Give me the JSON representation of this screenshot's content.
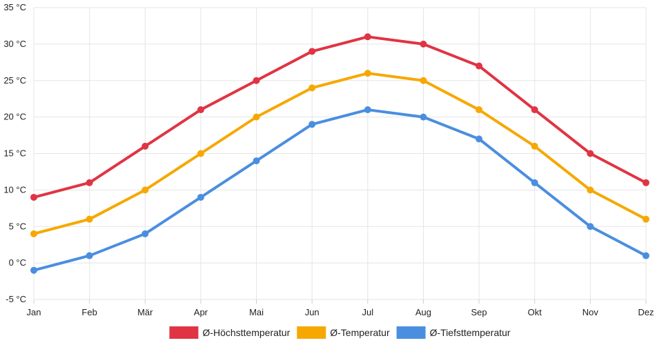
{
  "chart_data": {
    "type": "line",
    "categories": [
      "Jan",
      "Feb",
      "Mär",
      "Apr",
      "Mai",
      "Jun",
      "Jul",
      "Aug",
      "Sep",
      "Okt",
      "Nov",
      "Dez"
    ],
    "y_unit": "°C",
    "ylim": [
      -5,
      35
    ],
    "y_ticks": [
      -5,
      0,
      5,
      10,
      15,
      20,
      25,
      30,
      35
    ],
    "grid": true,
    "legend_position": "bottom",
    "series": [
      {
        "name": "Ø-Höchsttemperatur",
        "color": "#e03444",
        "values": [
          9,
          11,
          16,
          21,
          25,
          29,
          31,
          30,
          27,
          21,
          15,
          11
        ]
      },
      {
        "name": "Ø-Temperatur",
        "color": "#f6a800",
        "values": [
          4,
          6,
          10,
          15,
          20,
          24,
          26,
          25,
          21,
          16,
          10,
          6
        ]
      },
      {
        "name": "Ø-Tiefsttemperatur",
        "color": "#4a8ee0",
        "values": [
          -1,
          1,
          4,
          9,
          14,
          19,
          21,
          20,
          17,
          11,
          5,
          1
        ]
      }
    ]
  }
}
